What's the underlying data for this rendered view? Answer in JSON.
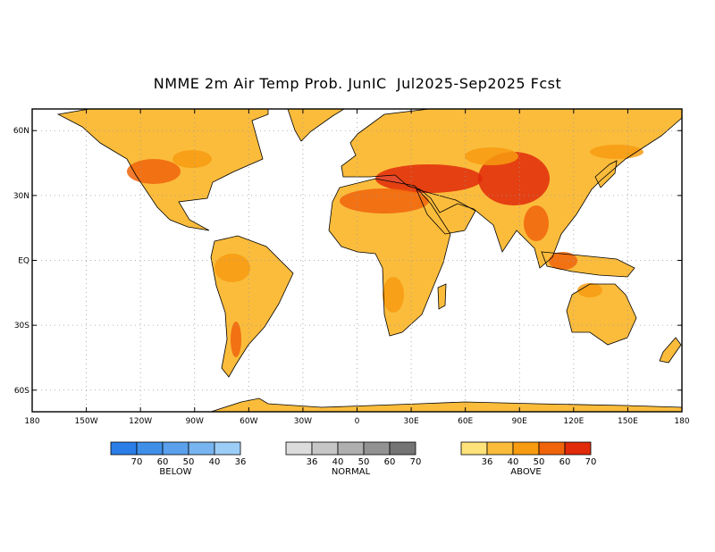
{
  "title": "NMME 2m Air Temp Prob. JunIC  Jul2025-Sep2025 Fcst",
  "map": {
    "lon_range": [
      -180,
      180
    ],
    "lat_range": [
      -70,
      70
    ],
    "grid_dotted": true,
    "ocean_color": "#ffffff",
    "land_neutral_color": "#ffffff",
    "lat_ticks": [
      {
        "value": 60,
        "label": "60N"
      },
      {
        "value": 30,
        "label": "30N"
      },
      {
        "value": 0,
        "label": "EQ"
      },
      {
        "value": -30,
        "label": "30S"
      },
      {
        "value": -60,
        "label": "60S"
      }
    ],
    "lon_ticks": [
      {
        "value": -180,
        "label": "180"
      },
      {
        "value": -150,
        "label": "150W"
      },
      {
        "value": -120,
        "label": "120W"
      },
      {
        "value": -90,
        "label": "90W"
      },
      {
        "value": -60,
        "label": "60W"
      },
      {
        "value": -30,
        "label": "30W"
      },
      {
        "value": 0,
        "label": "0"
      },
      {
        "value": 30,
        "label": "30E"
      },
      {
        "value": 60,
        "label": "60E"
      },
      {
        "value": 90,
        "label": "90E"
      },
      {
        "value": 120,
        "label": "120E"
      },
      {
        "value": 150,
        "label": "150E"
      },
      {
        "value": 180,
        "label": "180"
      }
    ]
  },
  "legend": {
    "below": {
      "name": "BELOW",
      "colors": [
        "#2b7ee8",
        "#3f8fe8",
        "#5aa0ec",
        "#78b5f0",
        "#9ccdf7"
      ],
      "tick_labels": [
        "70",
        "60",
        "50",
        "40",
        "36"
      ]
    },
    "normal": {
      "name": "NORMAL",
      "colors": [
        "#dcdcdc",
        "#c6c6c6",
        "#afafaf",
        "#929292",
        "#747474"
      ],
      "tick_labels": [
        "36",
        "40",
        "50",
        "60",
        "70"
      ]
    },
    "above": {
      "name": "ABOVE",
      "colors": [
        "#ffe27a",
        "#fbbc3c",
        "#f79b10",
        "#f0640c",
        "#e02a0a"
      ],
      "tick_labels": [
        "36",
        "40",
        "50",
        "60",
        "70"
      ]
    }
  }
}
